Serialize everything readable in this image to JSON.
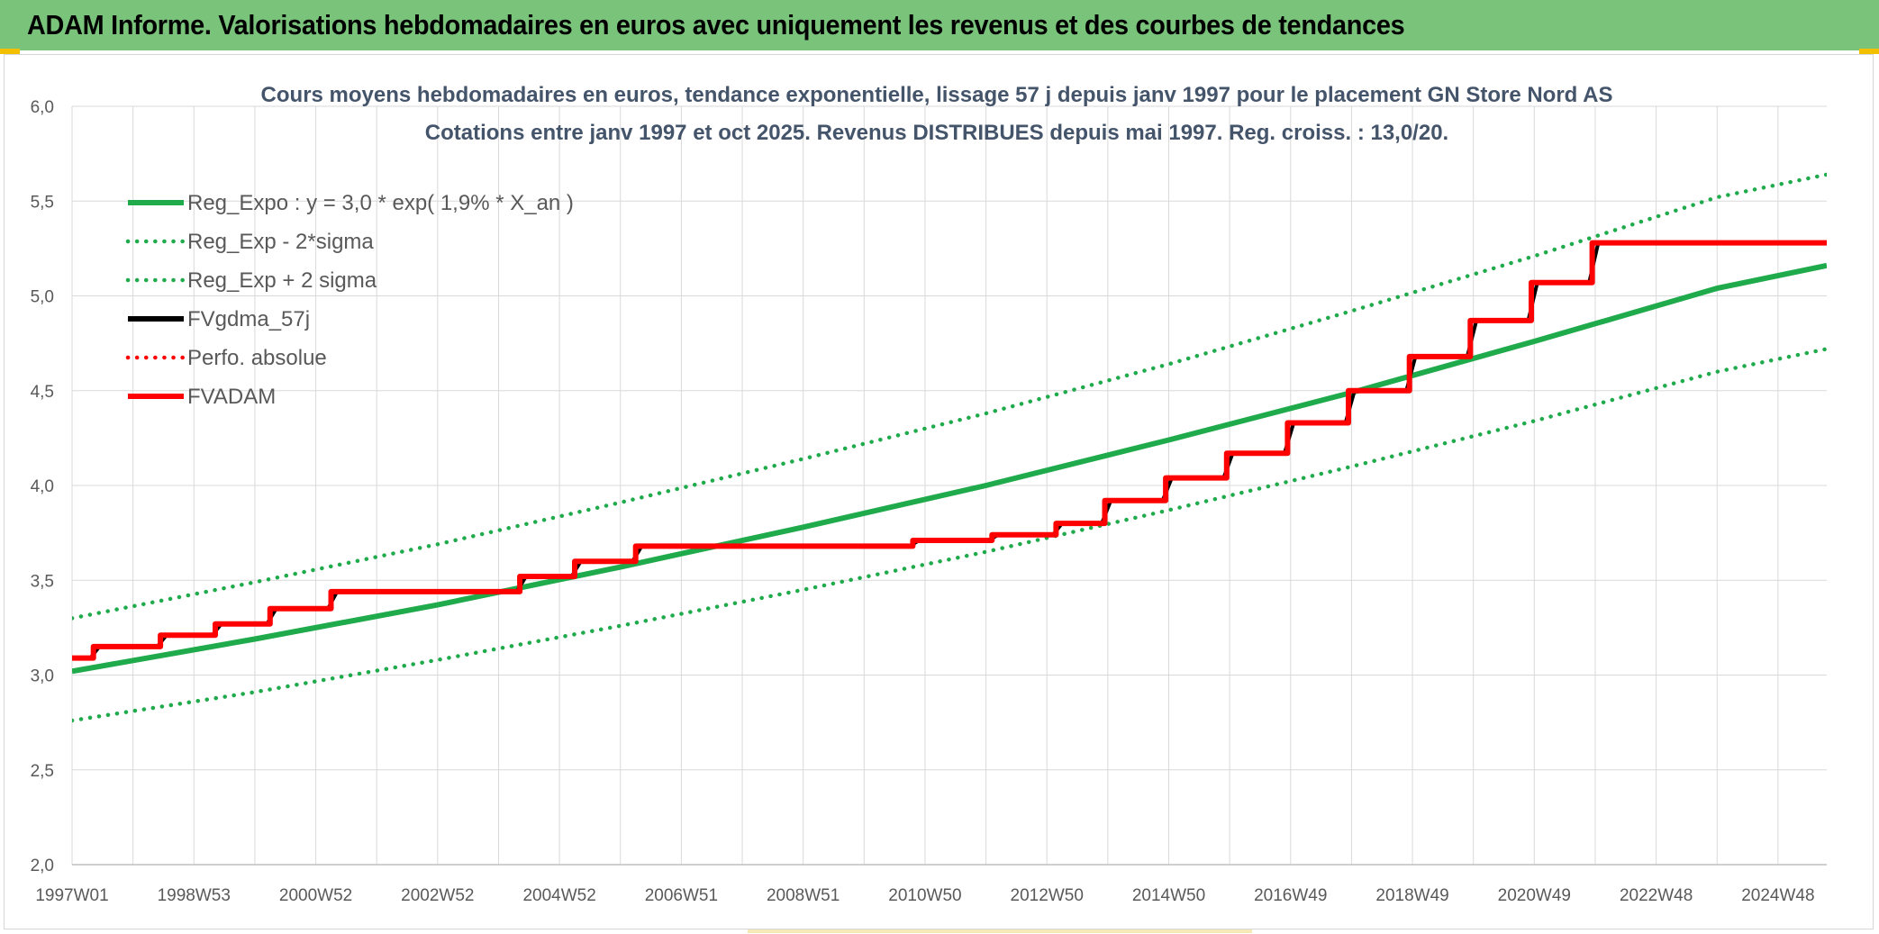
{
  "banner": {
    "title": "ADAM Informe. Valorisations hebdomadaires en euros avec uniquement les revenus et des courbes de tendances"
  },
  "colors": {
    "banner_bg": "#79c37b",
    "corner_accent": "#f2c000",
    "trend_green": "#1faa4b",
    "price_black": "#000000",
    "adam_red": "#ff0000",
    "grid": "#d9d9d9"
  },
  "chart_data": {
    "type": "line",
    "title": "Cours moyens hebdomadaires en euros, tendance exponentielle, lissage 57 j depuis janv 1997 pour le placement GN Store Nord AS",
    "subtitle": "Cotations entre janv 1997 et oct 2025. Revenus DISTRIBUES depuis mai 1997. Reg. croiss. : 13,0/20.",
    "xlabel": "",
    "ylabel": "",
    "x_range": [
      1997.0,
      2025.8
    ],
    "ylim": [
      2.0,
      6.0
    ],
    "y_ticks": [
      "2,0",
      "2,5",
      "3,0",
      "3,5",
      "4,0",
      "4,5",
      "5,0",
      "5,5",
      "6,0"
    ],
    "x_tick_labels": [
      {
        "label": "1997W01",
        "x": 1997.0
      },
      {
        "label": "1998W53",
        "x": 1999.0
      },
      {
        "label": "2000W52",
        "x": 2001.0
      },
      {
        "label": "2002W52",
        "x": 2003.0
      },
      {
        "label": "2004W52",
        "x": 2005.0
      },
      {
        "label": "2006W51",
        "x": 2007.0
      },
      {
        "label": "2008W51",
        "x": 2009.0
      },
      {
        "label": "2010W50",
        "x": 2011.0
      },
      {
        "label": "2012W50",
        "x": 2013.0
      },
      {
        "label": "2014W50",
        "x": 2015.0
      },
      {
        "label": "2016W49",
        "x": 2017.0
      },
      {
        "label": "2018W49",
        "x": 2019.0
      },
      {
        "label": "2020W49",
        "x": 2021.0
      },
      {
        "label": "2022W48",
        "x": 2023.0
      },
      {
        "label": "2024W48",
        "x": 2025.0
      }
    ],
    "grid": true,
    "legend_position": "top-left",
    "legend": [
      {
        "label": "Reg_Expo : y = 3,0 * exp( 1,9% *  X_an )",
        "color": "#1faa4b",
        "style": "solid"
      },
      {
        "label": "Reg_Exp - 2*sigma",
        "color": "#1faa4b",
        "style": "dotted"
      },
      {
        "label": "Reg_Exp + 2 sigma",
        "color": "#1faa4b",
        "style": "dotted"
      },
      {
        "label": "FVgdma_57j",
        "color": "#000000",
        "style": "solid"
      },
      {
        "label": "Perfo. absolue",
        "color": "#ff0000",
        "style": "dotted"
      },
      {
        "label": "FVADAM",
        "color": "#ff0000",
        "style": "solid"
      }
    ],
    "series": [
      {
        "name": "Reg_Expo : y = 3,0 * exp( 1,9% *  X_an )",
        "color": "#1faa4b",
        "style": "solid",
        "x": [
          1997.0,
          2000.0,
          2003.0,
          2006.0,
          2009.0,
          2012.0,
          2015.0,
          2018.0,
          2021.0,
          2024.0,
          2025.8
        ],
        "y": [
          3.02,
          3.19,
          3.37,
          3.57,
          3.78,
          4.0,
          4.24,
          4.49,
          4.76,
          5.04,
          5.16
        ]
      },
      {
        "name": "Reg_Exp - 2*sigma",
        "color": "#1faa4b",
        "style": "dotted",
        "x": [
          1997.0,
          2000.0,
          2003.0,
          2006.0,
          2009.0,
          2012.0,
          2015.0,
          2018.0,
          2021.0,
          2024.0,
          2025.8
        ],
        "y": [
          2.76,
          2.91,
          3.08,
          3.26,
          3.45,
          3.65,
          3.87,
          4.1,
          4.34,
          4.6,
          4.72
        ]
      },
      {
        "name": "Reg_Exp + 2 sigma",
        "color": "#1faa4b",
        "style": "dotted",
        "x": [
          1997.0,
          2000.0,
          2003.0,
          2006.0,
          2009.0,
          2012.0,
          2015.0,
          2018.0,
          2021.0,
          2024.0,
          2025.8
        ],
        "y": [
          3.3,
          3.49,
          3.69,
          3.91,
          4.14,
          4.38,
          4.64,
          4.92,
          5.21,
          5.52,
          5.64
        ]
      },
      {
        "name": "FVgdma_57j",
        "color": "#000000",
        "style": "solid",
        "x": [
          1997.0,
          1997.3,
          1997.45,
          1998.4,
          1998.55,
          1999.3,
          1999.45,
          2000.2,
          2000.35,
          2001.2,
          2001.35,
          2004.3,
          2004.45,
          2005.2,
          2005.35,
          2006.2,
          2006.35,
          2010.75,
          2010.9,
          2012.05,
          2012.2,
          2013.1,
          2013.25,
          2013.9,
          2014.05,
          2014.9,
          2015.05,
          2015.9,
          2016.05,
          2016.9,
          2017.05,
          2017.9,
          2018.05,
          2018.9,
          2019.05,
          2019.9,
          2020.05,
          2020.9,
          2021.05,
          2021.9,
          2022.05,
          2025.8
        ],
        "y": [
          3.09,
          3.09,
          3.15,
          3.15,
          3.21,
          3.21,
          3.27,
          3.27,
          3.35,
          3.35,
          3.44,
          3.44,
          3.52,
          3.52,
          3.6,
          3.6,
          3.68,
          3.68,
          3.71,
          3.71,
          3.74,
          3.74,
          3.8,
          3.8,
          3.92,
          3.92,
          4.04,
          4.04,
          4.17,
          4.17,
          4.33,
          4.33,
          4.5,
          4.5,
          4.68,
          4.68,
          4.87,
          4.87,
          5.07,
          5.07,
          5.28,
          5.28
        ]
      },
      {
        "name": "FVADAM",
        "color": "#ff0000",
        "style": "solid",
        "x": [
          1997.0,
          1997.35,
          1997.35,
          1998.45,
          1998.45,
          1999.35,
          1999.35,
          2000.25,
          2000.25,
          2001.25,
          2001.25,
          2004.35,
          2004.35,
          2005.25,
          2005.25,
          2006.25,
          2006.25,
          2010.8,
          2010.8,
          2012.1,
          2012.1,
          2013.15,
          2013.15,
          2013.95,
          2013.95,
          2014.95,
          2014.95,
          2015.95,
          2015.95,
          2016.95,
          2016.95,
          2017.95,
          2017.95,
          2018.95,
          2018.95,
          2019.95,
          2019.95,
          2020.95,
          2020.95,
          2021.95,
          2021.95,
          2025.8
        ],
        "y": [
          3.09,
          3.09,
          3.15,
          3.15,
          3.21,
          3.21,
          3.27,
          3.27,
          3.35,
          3.35,
          3.44,
          3.44,
          3.52,
          3.52,
          3.6,
          3.6,
          3.68,
          3.68,
          3.71,
          3.71,
          3.74,
          3.74,
          3.8,
          3.8,
          3.92,
          3.92,
          4.04,
          4.04,
          4.17,
          4.17,
          4.33,
          4.33,
          4.5,
          4.5,
          4.68,
          4.68,
          4.87,
          4.87,
          5.07,
          5.07,
          5.28,
          5.28
        ]
      }
    ]
  }
}
